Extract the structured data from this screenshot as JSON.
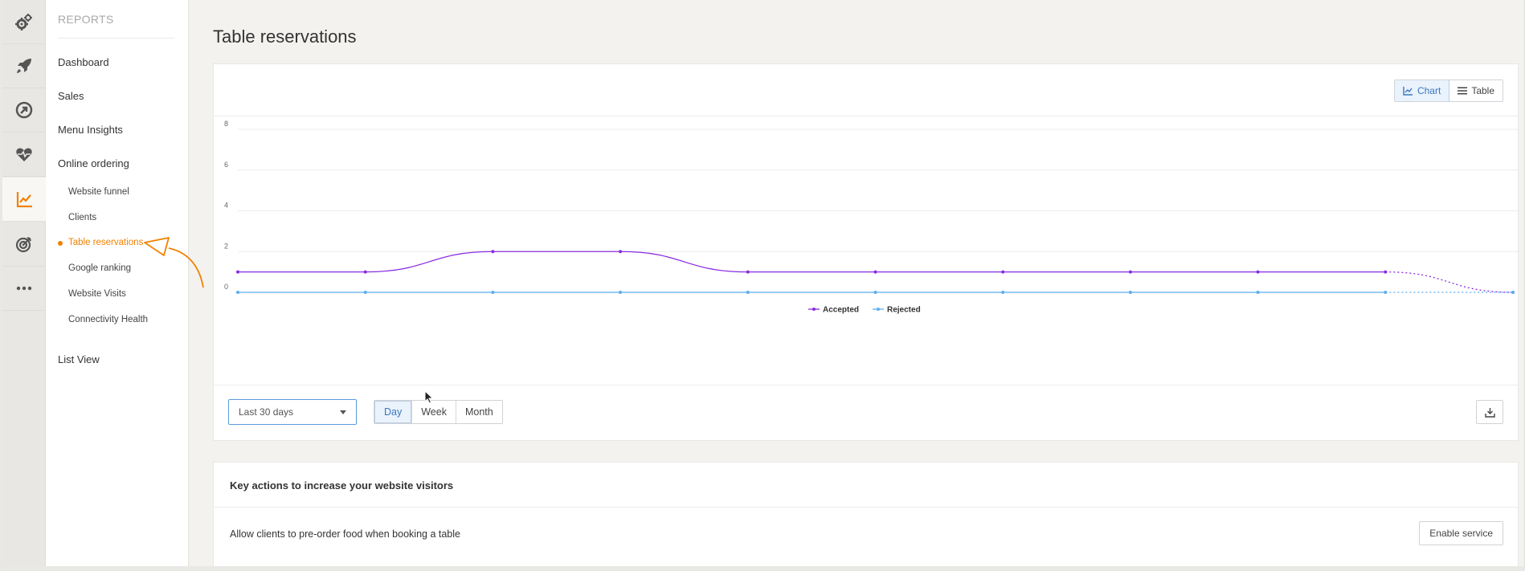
{
  "sidebar": {
    "section_title": "REPORTS",
    "items": [
      {
        "label": "Dashboard"
      },
      {
        "label": "Sales"
      },
      {
        "label": "Menu Insights"
      },
      {
        "label": "Online ordering"
      }
    ],
    "sub_items": [
      {
        "label": "Website funnel"
      },
      {
        "label": "Clients"
      },
      {
        "label": "Table reservations"
      },
      {
        "label": "Google ranking"
      },
      {
        "label": "Website Visits"
      },
      {
        "label": "Connectivity Health"
      }
    ],
    "list_view": "List View"
  },
  "rail_icons": [
    "gears-icon",
    "rocket-icon",
    "arrow-circle-icon",
    "heart-pulse-icon",
    "chart-line-icon",
    "target-icon",
    "more-dots-icon"
  ],
  "page": {
    "title": "Table reservations"
  },
  "view_toggle": {
    "chart": "Chart",
    "table": "Table"
  },
  "controls": {
    "range": "Last 30 days",
    "periods": [
      "Day",
      "Week",
      "Month"
    ],
    "active_period": "Day"
  },
  "key_actions": {
    "title": "Key actions to increase your website visitors",
    "row_label": "Allow clients to pre-order food when booking a table",
    "button": "Enable service"
  },
  "colors": {
    "accent": "#f08200",
    "accepted": "#8a2be2",
    "rejected": "#5aaef0",
    "active_blue": "#3a78c3"
  },
  "chart_data": {
    "type": "line",
    "y_ticks": [
      "0",
      "2",
      "4",
      "6",
      "8"
    ],
    "ylim": [
      0,
      8
    ],
    "x_count": 11,
    "series": [
      {
        "name": "Accepted",
        "values": [
          1,
          1,
          2,
          2,
          1,
          1,
          1,
          1,
          1,
          1,
          0
        ]
      },
      {
        "name": "Rejected",
        "values": [
          0,
          0,
          0,
          0,
          0,
          0,
          0,
          0,
          0,
          0,
          0
        ]
      }
    ],
    "last_segment_dashed": true,
    "legend_placement": "bottom-center",
    "grid": true
  }
}
